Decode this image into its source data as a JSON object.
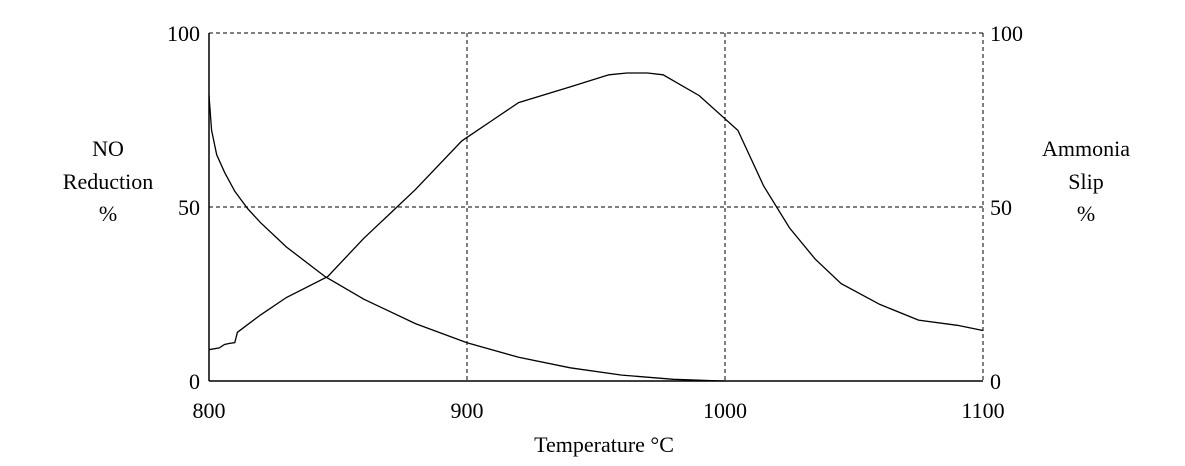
{
  "chart_data": {
    "type": "line",
    "xlabel": "Temperature °C",
    "ylabel_left": [
      "NO",
      "Reduction",
      "%"
    ],
    "ylabel_right": [
      "Ammonia",
      "Slip",
      "%"
    ],
    "xlim": [
      800,
      1100
    ],
    "ylim": [
      0,
      100
    ],
    "x_ticks": [
      800,
      900,
      1000,
      1100
    ],
    "x_tick_labels": [
      "800",
      "900",
      "1000",
      "1100"
    ],
    "y_ticks": [
      0,
      50,
      100
    ],
    "y_tick_labels_left": [
      "0",
      "50",
      "100"
    ],
    "y_tick_labels_right": [
      "0",
      "50",
      "100"
    ],
    "grid": true,
    "series": [
      {
        "x": [
          800,
          804,
          806,
          808,
          810,
          811,
          820,
          830,
          846,
          860,
          870,
          880,
          898,
          910,
          920,
          940,
          955,
          962,
          970,
          976,
          990,
          1005,
          1015,
          1025,
          1035,
          1045,
          1060,
          1075,
          1090,
          1100
        ],
        "y": [
          9,
          9.5,
          10.5,
          10.8,
          11,
          14,
          19,
          24,
          30,
          41,
          48,
          55,
          69,
          75,
          80,
          84.5,
          88,
          88.5,
          88.5,
          88,
          82,
          72,
          56,
          44,
          35,
          28,
          22,
          17.5,
          16,
          14.5
        ]
      },
      {
        "x": [
          800,
          801,
          803,
          806,
          810,
          815,
          820,
          830,
          845,
          860,
          880,
          900,
          920,
          940,
          960,
          980,
          995,
          1000
        ],
        "y": [
          82,
          72,
          65,
          60,
          54.5,
          49.5,
          45.5,
          38.5,
          30,
          23.5,
          16.5,
          11,
          6.8,
          3.8,
          1.7,
          0.5,
          0.1,
          0
        ]
      }
    ]
  }
}
